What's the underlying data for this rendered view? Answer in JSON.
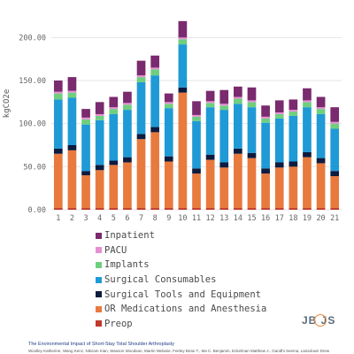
{
  "chart_data": {
    "type": "bar",
    "stacked": true,
    "xlabel": "",
    "ylabel": "kgCO2e",
    "ylim": [
      0,
      225
    ],
    "yticks": [
      "0.00",
      "50.00",
      "100.00",
      "150.00",
      "200.00"
    ],
    "ytick_values": [
      0,
      50,
      100,
      150,
      200
    ],
    "grid": true,
    "legend_position": "bottom",
    "categories": [
      "1",
      "2",
      "3",
      "4",
      "5",
      "6",
      "7",
      "8",
      "9",
      "10",
      "11",
      "12",
      "13",
      "14",
      "15",
      "16",
      "17",
      "18",
      "19",
      "20",
      "21"
    ],
    "series": [
      {
        "name": "Preop",
        "color": "#c0392b",
        "values": [
          2,
          2,
          2,
          2,
          2,
          2,
          2,
          2,
          2,
          2,
          2,
          2,
          2,
          2,
          2,
          2,
          2,
          2,
          2,
          2,
          2
        ]
      },
      {
        "name": "OR Medications and Anesthesia",
        "color": "#e87a3e",
        "values": [
          63,
          67,
          38,
          44,
          50,
          53,
          80,
          88,
          54,
          134,
          40,
          56,
          47,
          63,
          58,
          40,
          47,
          48,
          59,
          52,
          37
        ]
      },
      {
        "name": "Surgical Tools and Equipment",
        "color": "#0d1b3e",
        "values": [
          6,
          6,
          5,
          6,
          5,
          6,
          6,
          6,
          6,
          6,
          6,
          6,
          6,
          6,
          6,
          6,
          6,
          6,
          6,
          6,
          6
        ]
      },
      {
        "name": "Surgical Consumables",
        "color": "#1f9ad6",
        "values": [
          57,
          55,
          54,
          52,
          54,
          55,
          60,
          60,
          56,
          50,
          55,
          55,
          61,
          52,
          53,
          53,
          51,
          53,
          52,
          51,
          49
        ]
      },
      {
        "name": "Implants",
        "color": "#6fcf7f",
        "values": [
          7,
          6,
          6,
          5,
          6,
          6,
          6,
          7,
          5,
          6,
          5,
          5,
          5,
          6,
          6,
          5,
          5,
          5,
          6,
          6,
          6
        ]
      },
      {
        "name": "PACU",
        "color": "#e78fd5",
        "values": [
          2,
          2,
          2,
          2,
          2,
          2,
          2,
          2,
          2,
          2,
          2,
          2,
          2,
          2,
          2,
          2,
          2,
          2,
          2,
          2,
          2
        ]
      },
      {
        "name": "Inpatient",
        "color": "#7a2a6e",
        "values": [
          13,
          16,
          10,
          14,
          12,
          13,
          17,
          14,
          10,
          19,
          16,
          12,
          16,
          12,
          15,
          13,
          14,
          12,
          14,
          12,
          17
        ]
      }
    ]
  },
  "footer": {
    "title": "The Environmental Impact of Short-Stay Total Shoulder Arthroplasty",
    "authors": "Woolley Katherine, Wang Kenz, Nikzam Kian, Wasson Woodsan, Martin Melanie, Feeley Brian T., Ma C. Benjamin, Eckelman Matthew J., Gandhi Seema, Lansdown Drew"
  },
  "logo": {
    "text": "JB  JS"
  }
}
